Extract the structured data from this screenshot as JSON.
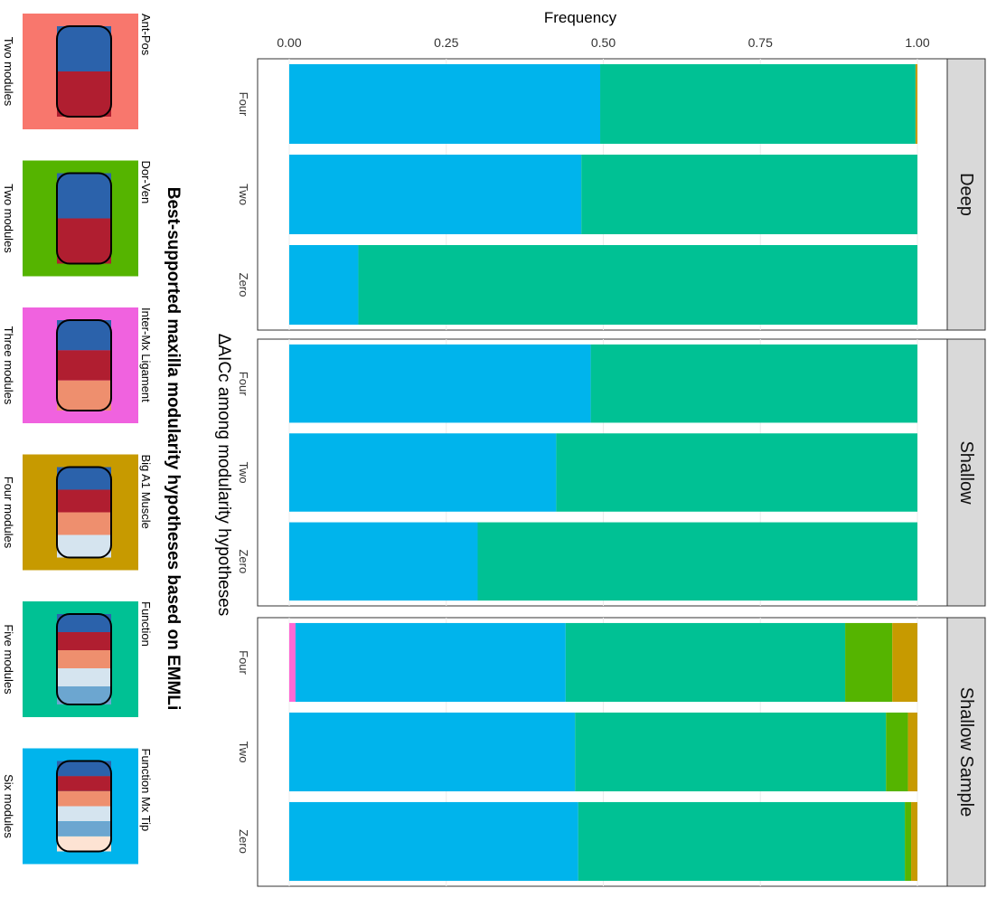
{
  "chart_data": {
    "type": "bar",
    "orientation": "stacked-horizontal, figure rotated 90° clockwise",
    "title": "Best-supported maxilla modularity hypotheses based on EMMLi",
    "xlabel": "Frequency",
    "ylabel": "ΔAICc among modularity hypotheses",
    "xlim": [
      0,
      1
    ],
    "x_ticks": [
      "0.00",
      "0.25",
      "0.50",
      "0.75",
      "1.00"
    ],
    "grid": true,
    "categories": [
      "Four",
      "Two",
      "Zero"
    ],
    "series_colors": [
      "#ff69d4",
      "#00b4ec",
      "#00c194",
      "#55b400",
      "#c79a00",
      "#f8776d"
    ],
    "facets": [
      {
        "label": "Deep",
        "bars": [
          {
            "category": "Four",
            "values": [
              0,
              0.495,
              0.502,
              0,
              0.003,
              0
            ]
          },
          {
            "category": "Two",
            "values": [
              0,
              0.465,
              0.535,
              0,
              0,
              0
            ]
          },
          {
            "category": "Zero",
            "values": [
              0,
              0.11,
              0.89,
              0,
              0,
              0
            ]
          }
        ]
      },
      {
        "label": "Shallow",
        "bars": [
          {
            "category": "Four",
            "values": [
              0,
              0.48,
              0.52,
              0,
              0,
              0
            ]
          },
          {
            "category": "Two",
            "values": [
              0,
              0.425,
              0.575,
              0,
              0,
              0
            ]
          },
          {
            "category": "Zero",
            "values": [
              0,
              0.3,
              0.7,
              0,
              0,
              0
            ]
          }
        ]
      },
      {
        "label": "Shallow Sample",
        "bars": [
          {
            "category": "Four",
            "values": [
              0.01,
              0.43,
              0.445,
              0.075,
              0.04,
              0
            ]
          },
          {
            "category": "Two",
            "values": [
              0,
              0.455,
              0.495,
              0.035,
              0.015,
              0
            ]
          },
          {
            "category": "Zero",
            "values": [
              0,
              0.46,
              0.52,
              0.01,
              0.01,
              0
            ]
          }
        ]
      }
    ],
    "legend": {
      "title": "Best-supported maxilla modularity hypotheses based on EMMLi",
      "items": [
        {
          "name": "Ant-Pos",
          "modules": "Two modules",
          "color": "#f8776d",
          "colors": [
            "#2b62ab",
            "#b01e30"
          ]
        },
        {
          "name": "Dor-Ven",
          "modules": "Two modules",
          "color": "#55b400",
          "colors": [
            "#2b62ab",
            "#b01e30"
          ]
        },
        {
          "name": "Inter-Mx Ligament",
          "modules": "Three modules",
          "color": "#f062df",
          "colors": [
            "#2b62ab",
            "#b01e30",
            "#ee8f6e"
          ]
        },
        {
          "name": "Big A1 Muscle",
          "modules": "Four modules",
          "color": "#c79a00",
          "colors": [
            "#2b62ab",
            "#b01e30",
            "#ee8f6e",
            "#d5e4ef"
          ]
        },
        {
          "name": "Function",
          "modules": "Five modules",
          "color": "#00c194",
          "colors": [
            "#2b62ab",
            "#b01e30",
            "#ee8f6e",
            "#d5e4ef",
            "#6ca6d0"
          ]
        },
        {
          "name": "Function Mx Tip",
          "modules": "Six modules",
          "color": "#00b4ec",
          "colors": [
            "#2b62ab",
            "#b01e30",
            "#ee8f6e",
            "#d5e4ef",
            "#6ca6d0",
            "#fde3d3"
          ]
        }
      ]
    }
  }
}
